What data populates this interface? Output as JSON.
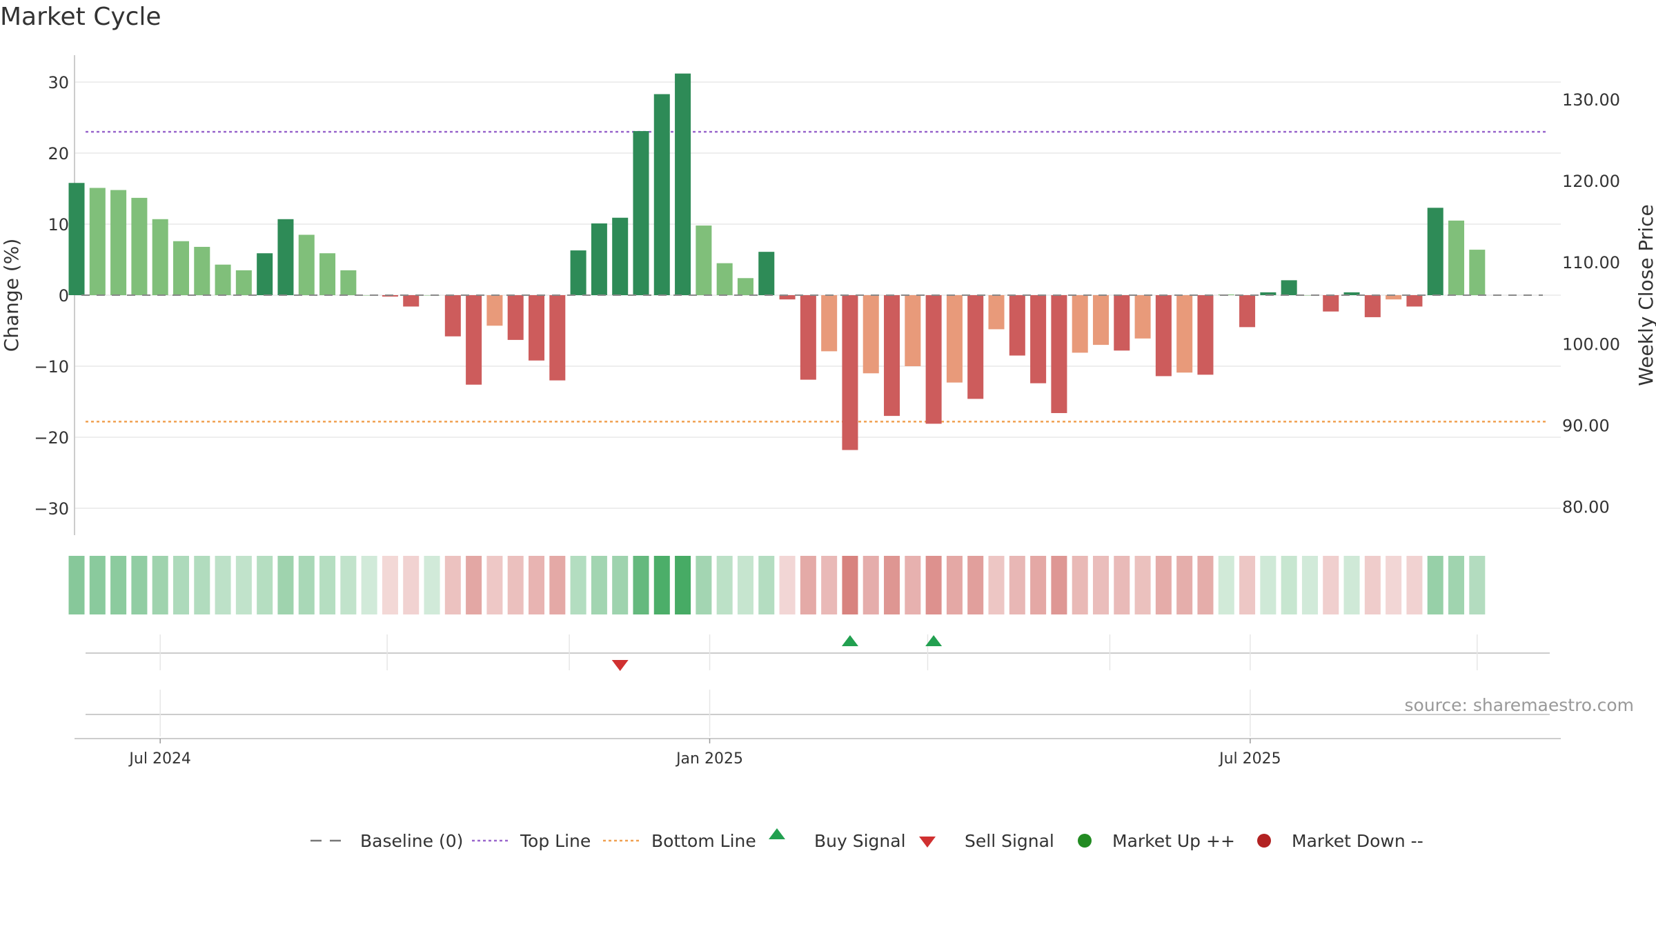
{
  "title": "Market Cycle",
  "source": "source: sharemaestro.com",
  "colors": {
    "strong_up": "#2e8b57",
    "mild_up": "#80bf7a",
    "strong_down": "#cd5c5c",
    "mild_down": "#e89a7a",
    "top_line": "#9966cc",
    "bottom_line": "#f0a050",
    "buy": "#22a050",
    "sell": "#d03030",
    "market_up": "#228b22",
    "market_down": "#b22222"
  },
  "chart_data": {
    "type": "bar",
    "ylabel_left": "Change (%)",
    "ylabel_right": "Weekly Close Price",
    "yticks_left": [
      30,
      20,
      10,
      0,
      -10,
      -20,
      -30
    ],
    "ylim_left": [
      -34,
      34
    ],
    "yticks_right": [
      "130.00",
      "120.00",
      "110.00",
      "100.00",
      "90.00",
      "80.00"
    ],
    "yticks_right_values": [
      130,
      120,
      110,
      100,
      90,
      80
    ],
    "ylim_right": [
      76.5,
      135.4
    ],
    "top_line": 23,
    "bottom_line": -17.8,
    "x_start": "2024-06-03",
    "x_end": "2025-10-13",
    "x_labels": [
      {
        "date": "2024-07-01",
        "label": "Jul 2024"
      },
      {
        "date": "2025-01-01",
        "label": "Jan 2025"
      },
      {
        "date": "2025-07-01",
        "label": "Jul 2025"
      }
    ],
    "weeks": [
      {
        "date": "2024-06-03",
        "value": 15.8,
        "strength": "strong"
      },
      {
        "date": "2024-06-10",
        "value": 15.1,
        "strength": "mild"
      },
      {
        "date": "2024-06-17",
        "value": 14.8,
        "strength": "mild"
      },
      {
        "date": "2024-06-24",
        "value": 13.7,
        "strength": "mild"
      },
      {
        "date": "2024-07-01",
        "value": 10.7,
        "strength": "mild"
      },
      {
        "date": "2024-07-08",
        "value": 7.6,
        "strength": "mild"
      },
      {
        "date": "2024-07-15",
        "value": 6.8,
        "strength": "mild"
      },
      {
        "date": "2024-07-22",
        "value": 4.3,
        "strength": "mild"
      },
      {
        "date": "2024-07-29",
        "value": 3.5,
        "strength": "mild"
      },
      {
        "date": "2024-08-05",
        "value": 5.9,
        "strength": "strong"
      },
      {
        "date": "2024-08-12",
        "value": 10.7,
        "strength": "strong"
      },
      {
        "date": "2024-08-19",
        "value": 8.5,
        "strength": "mild"
      },
      {
        "date": "2024-08-26",
        "value": 5.9,
        "strength": "mild"
      },
      {
        "date": "2024-09-02",
        "value": 3.5,
        "strength": "mild"
      },
      {
        "date": "2024-09-09",
        "value": 0,
        "strength": "mild"
      },
      {
        "date": "2024-09-16",
        "value": -0.2,
        "strength": "strong"
      },
      {
        "date": "2024-09-23",
        "value": -1.6,
        "strength": "strong"
      },
      {
        "date": "2024-09-30",
        "value": 0,
        "strength": "mild"
      },
      {
        "date": "2024-10-07",
        "value": -5.8,
        "strength": "strong"
      },
      {
        "date": "2024-10-14",
        "value": -12.6,
        "strength": "strong"
      },
      {
        "date": "2024-10-21",
        "value": -4.3,
        "strength": "mild"
      },
      {
        "date": "2024-10-28",
        "value": -6.3,
        "strength": "strong"
      },
      {
        "date": "2024-11-04",
        "value": -9.2,
        "strength": "strong"
      },
      {
        "date": "2024-11-11",
        "value": -12.0,
        "strength": "strong"
      },
      {
        "date": "2024-11-18",
        "value": 6.3,
        "strength": "strong"
      },
      {
        "date": "2024-11-25",
        "value": 10.1,
        "strength": "strong"
      },
      {
        "date": "2024-12-02",
        "value": 10.9,
        "strength": "strong"
      },
      {
        "date": "2024-12-09",
        "value": 23.1,
        "strength": "strong"
      },
      {
        "date": "2024-12-16",
        "value": 28.3,
        "strength": "strong"
      },
      {
        "date": "2024-12-23",
        "value": 31.2,
        "strength": "strong"
      },
      {
        "date": "2024-12-30",
        "value": 9.8,
        "strength": "mild"
      },
      {
        "date": "2025-01-06",
        "value": 4.5,
        "strength": "mild"
      },
      {
        "date": "2025-01-13",
        "value": 2.4,
        "strength": "mild"
      },
      {
        "date": "2025-01-20",
        "value": 6.1,
        "strength": "strong"
      },
      {
        "date": "2025-01-27",
        "value": -0.6,
        "strength": "strong"
      },
      {
        "date": "2025-02-03",
        "value": -11.9,
        "strength": "strong"
      },
      {
        "date": "2025-02-10",
        "value": -7.9,
        "strength": "mild"
      },
      {
        "date": "2025-02-17",
        "value": -21.8,
        "strength": "strong"
      },
      {
        "date": "2025-02-24",
        "value": -11.0,
        "strength": "mild"
      },
      {
        "date": "2025-03-03",
        "value": -17.0,
        "strength": "strong"
      },
      {
        "date": "2025-03-10",
        "value": -10.0,
        "strength": "mild"
      },
      {
        "date": "2025-03-17",
        "value": -18.1,
        "strength": "strong"
      },
      {
        "date": "2025-03-24",
        "value": -12.3,
        "strength": "mild"
      },
      {
        "date": "2025-03-31",
        "value": -14.6,
        "strength": "strong"
      },
      {
        "date": "2025-04-07",
        "value": -4.8,
        "strength": "mild"
      },
      {
        "date": "2025-04-14",
        "value": -8.5,
        "strength": "strong"
      },
      {
        "date": "2025-04-21",
        "value": -12.4,
        "strength": "strong"
      },
      {
        "date": "2025-04-28",
        "value": -16.6,
        "strength": "strong"
      },
      {
        "date": "2025-05-05",
        "value": -8.1,
        "strength": "mild"
      },
      {
        "date": "2025-05-12",
        "value": -7.0,
        "strength": "mild"
      },
      {
        "date": "2025-05-19",
        "value": -7.8,
        "strength": "strong"
      },
      {
        "date": "2025-05-26",
        "value": -6.1,
        "strength": "mild"
      },
      {
        "date": "2025-06-02",
        "value": -11.4,
        "strength": "strong"
      },
      {
        "date": "2025-06-09",
        "value": -10.9,
        "strength": "mild"
      },
      {
        "date": "2025-06-16",
        "value": -11.2,
        "strength": "strong"
      },
      {
        "date": "2025-06-23",
        "value": 0.1,
        "strength": "mild"
      },
      {
        "date": "2025-06-30",
        "value": -4.5,
        "strength": "strong"
      },
      {
        "date": "2025-07-07",
        "value": 0.4,
        "strength": "strong"
      },
      {
        "date": "2025-07-14",
        "value": 2.1,
        "strength": "strong"
      },
      {
        "date": "2025-07-21",
        "value": 0,
        "strength": "mild"
      },
      {
        "date": "2025-07-28",
        "value": -2.3,
        "strength": "strong"
      },
      {
        "date": "2025-08-04",
        "value": 0.4,
        "strength": "strong"
      },
      {
        "date": "2025-08-11",
        "value": -3.1,
        "strength": "strong"
      },
      {
        "date": "2025-08-18",
        "value": -0.6,
        "strength": "mild"
      },
      {
        "date": "2025-08-25",
        "value": -1.6,
        "strength": "strong"
      },
      {
        "date": "2025-09-01",
        "value": 12.3,
        "strength": "strong"
      },
      {
        "date": "2025-09-08",
        "value": 10.5,
        "strength": "mild"
      },
      {
        "date": "2025-09-15",
        "value": 6.4,
        "strength": "mild"
      }
    ],
    "signals": [
      {
        "date": "2024-12-02",
        "type": "sell"
      },
      {
        "date": "2025-02-17",
        "type": "buy"
      },
      {
        "date": "2025-03-17",
        "type": "buy"
      }
    ],
    "legend": [
      {
        "key": "baseline",
        "label": "Baseline (0)"
      },
      {
        "key": "top",
        "label": "Top Line"
      },
      {
        "key": "bottom",
        "label": "Bottom Line"
      },
      {
        "key": "buy",
        "label": "Buy Signal"
      },
      {
        "key": "sell",
        "label": "Sell Signal"
      },
      {
        "key": "up",
        "label": "Market Up ++"
      },
      {
        "key": "down",
        "label": "Market Down --"
      }
    ]
  }
}
